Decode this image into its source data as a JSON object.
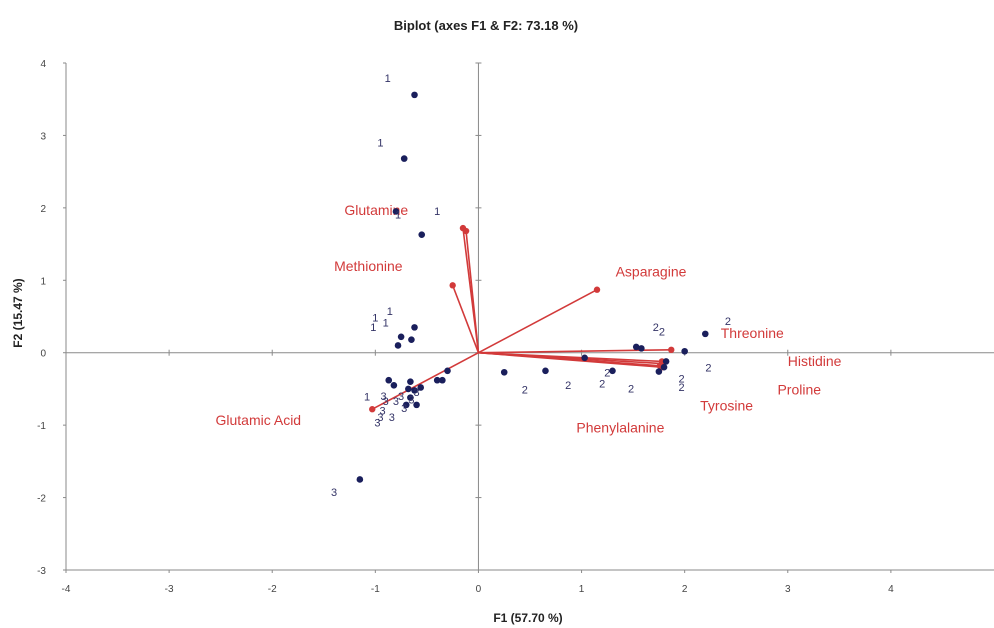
{
  "chart_data": {
    "type": "scatter",
    "title": "Biplot (axes F1 & F2: 73.18 %)",
    "xlabel": "F1 (57.70 %)",
    "ylabel": "F2 (15.47 %)",
    "xlim": [
      -4,
      5
    ],
    "ylim": [
      -3,
      4
    ],
    "xticks": [
      -4,
      -3,
      -2,
      -1,
      0,
      1,
      2,
      3,
      4
    ],
    "yticks": [
      -3,
      -2,
      -1,
      0,
      1,
      2,
      3,
      4
    ],
    "xtick_labels": [
      "-4",
      "-3",
      "-2",
      "-1",
      "0",
      "1",
      "2",
      "3",
      "4"
    ],
    "ytick_labels": [
      "-3",
      "-2",
      "-1",
      "0",
      "1",
      "2",
      "3",
      "4"
    ],
    "grid": false,
    "legend": "none",
    "colors": {
      "observation": "#1a1f5c",
      "variable": "#d23a3a",
      "axis": "#8a8a8a"
    },
    "observations": [
      {
        "x": -0.62,
        "y": 3.56,
        "label": "1",
        "lx": -0.88,
        "ly": 3.74
      },
      {
        "x": -0.72,
        "y": 2.68,
        "label": "1",
        "lx": -0.95,
        "ly": 2.85
      },
      {
        "x": -0.55,
        "y": 1.63,
        "label": "1",
        "lx": -0.4,
        "ly": 1.9
      },
      {
        "x": -0.8,
        "y": 1.95,
        "label": "1",
        "lx": -0.78,
        "ly": 1.85
      },
      {
        "x": -0.62,
        "y": 0.35,
        "label": "1",
        "lx": -0.86,
        "ly": 0.52
      },
      {
        "x": -0.75,
        "y": 0.22,
        "label": "1",
        "lx": -1.0,
        "ly": 0.43
      },
      {
        "x": -0.65,
        "y": 0.18,
        "label": "1",
        "lx": -1.02,
        "ly": 0.3
      },
      {
        "x": -0.78,
        "y": 0.1,
        "label": "1",
        "lx": -0.9,
        "ly": 0.36
      },
      {
        "x": -0.87,
        "y": -0.38,
        "label": "1",
        "lx": -1.08,
        "ly": -0.66
      },
      {
        "x": -0.82,
        "y": -0.45,
        "label": "3",
        "lx": -0.92,
        "ly": -0.65
      },
      {
        "x": -0.66,
        "y": -0.4,
        "label": "3",
        "lx": -0.9,
        "ly": -0.72
      },
      {
        "x": -0.68,
        "y": -0.5,
        "label": "3",
        "lx": -0.93,
        "ly": -0.85
      },
      {
        "x": -0.62,
        "y": -0.52,
        "label": "3",
        "lx": -0.84,
        "ly": -0.94
      },
      {
        "x": -0.56,
        "y": -0.48,
        "label": "3",
        "lx": -0.95,
        "ly": -0.94
      },
      {
        "x": -0.66,
        "y": -0.62,
        "label": "3",
        "lx": -0.98,
        "ly": -1.02
      },
      {
        "x": -0.7,
        "y": -0.72,
        "label": "3",
        "lx": -0.6,
        "ly": -0.6
      },
      {
        "x": -0.6,
        "y": -0.72,
        "label": "3",
        "lx": -0.8,
        "ly": -0.72
      },
      {
        "x": -0.4,
        "y": -0.38,
        "label": "3",
        "lx": -0.75,
        "ly": -0.65
      },
      {
        "x": -0.35,
        "y": -0.38,
        "label": "3",
        "lx": -0.65,
        "ly": -0.7
      },
      {
        "x": -0.3,
        "y": -0.25,
        "label": "3",
        "lx": -0.72,
        "ly": -0.82
      },
      {
        "x": -1.15,
        "y": -1.75,
        "label": "3",
        "lx": -1.4,
        "ly": -1.98
      },
      {
        "x": 0.25,
        "y": -0.27,
        "label": "2",
        "lx": 0.45,
        "ly": -0.56
      },
      {
        "x": 0.65,
        "y": -0.25,
        "label": "2",
        "lx": 0.87,
        "ly": -0.5
      },
      {
        "x": 1.03,
        "y": -0.07,
        "label": "2",
        "lx": 1.2,
        "ly": -0.48
      },
      {
        "x": 1.3,
        "y": -0.25,
        "label": "2",
        "lx": 1.48,
        "ly": -0.55
      },
      {
        "x": 1.53,
        "y": 0.08,
        "label": "2",
        "lx": 1.72,
        "ly": 0.3
      },
      {
        "x": 1.58,
        "y": 0.06,
        "label": "2",
        "lx": 1.78,
        "ly": 0.24
      },
      {
        "x": 1.75,
        "y": -0.26,
        "label": "2",
        "lx": 1.25,
        "ly": -0.33
      },
      {
        "x": 2.0,
        "y": 0.02,
        "label": "2",
        "lx": 1.97,
        "ly": -0.41
      },
      {
        "x": 2.2,
        "y": 0.26,
        "label": "2",
        "lx": 1.97,
        "ly": -0.53
      },
      {
        "x": 1.8,
        "y": -0.2,
        "label": "2",
        "lx": 2.42,
        "ly": 0.38
      },
      {
        "x": 1.82,
        "y": -0.12,
        "label": "2",
        "lx": 2.23,
        "ly": -0.26
      }
    ],
    "variables": [
      {
        "name": "Glutamine",
        "x": -0.15,
        "y": 1.72,
        "lx": -1.3,
        "ly": 1.9
      },
      {
        "name": "Glutamine",
        "x": -0.12,
        "y": 1.68,
        "lx": null,
        "ly": null
      },
      {
        "name": "Methionine",
        "x": -0.25,
        "y": 0.93,
        "lx": -1.4,
        "ly": 1.13
      },
      {
        "name": "Asparagine",
        "x": 1.15,
        "y": 0.87,
        "lx": 1.33,
        "ly": 1.05
      },
      {
        "name": "Threonine",
        "x": 1.87,
        "y": 0.04,
        "lx": 2.35,
        "ly": 0.2
      },
      {
        "name": "Histidine",
        "x": 1.78,
        "y": -0.12,
        "lx": 3.0,
        "ly": -0.18
      },
      {
        "name": "Proline",
        "x": 1.78,
        "y": -0.15,
        "lx": 2.9,
        "ly": -0.58
      },
      {
        "name": "Tyrosine",
        "x": 1.78,
        "y": -0.2,
        "lx": 2.15,
        "ly": -0.8
      },
      {
        "name": "Phenylalanine",
        "x": 1.76,
        "y": -0.18,
        "lx": 0.95,
        "ly": -1.1
      },
      {
        "name": "Glutamic Acid",
        "x": -1.03,
        "y": -0.78,
        "lx": -2.55,
        "ly": -1.0
      }
    ]
  }
}
